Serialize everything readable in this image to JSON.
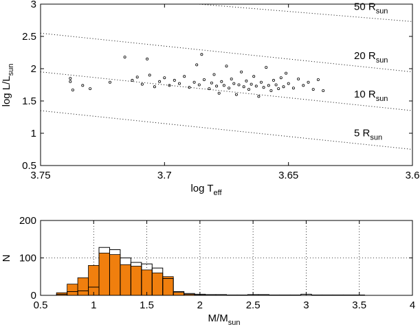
{
  "chart_data": [
    {
      "type": "scatter",
      "xlabel": {
        "base": "log T",
        "sub": "eff"
      },
      "ylabel": {
        "base": "log L/L",
        "sub": "sun"
      },
      "xlim": [
        3.75,
        3.6
      ],
      "ylim": [
        0.5,
        3
      ],
      "x_reversed": true,
      "xticks": [
        "3.75",
        "3.7",
        "3.65",
        "3.6"
      ],
      "xtick_values": [
        3.75,
        3.7,
        3.65,
        3.6
      ],
      "yticks": [
        "0.5",
        "1",
        "1.5",
        "2",
        "2.5",
        "3"
      ],
      "ytick_values": [
        0.5,
        1,
        1.5,
        2,
        2.5,
        3
      ],
      "grid": false,
      "marker": "open-circle",
      "radius_lines": [
        {
          "label": "50 R",
          "sub": "sun",
          "left_y": 3.2,
          "right_y": 2.73
        },
        {
          "label": "20 R",
          "sub": "sun",
          "left_y": 2.55,
          "right_y": 1.95
        },
        {
          "label": "10 R",
          "sub": "sun",
          "left_y": 1.95,
          "right_y": 1.35
        },
        {
          "label": "5 R",
          "sub": "sun",
          "left_y": 1.35,
          "right_y": 0.75
        }
      ],
      "points": [
        [
          3.738,
          1.85
        ],
        [
          3.738,
          1.8
        ],
        [
          3.737,
          1.67
        ],
        [
          3.733,
          1.74
        ],
        [
          3.73,
          1.69
        ],
        [
          3.722,
          1.79
        ],
        [
          3.716,
          2.18
        ],
        [
          3.713,
          1.82
        ],
        [
          3.711,
          1.87
        ],
        [
          3.709,
          1.76
        ],
        [
          3.707,
          2.15
        ],
        [
          3.706,
          1.9
        ],
        [
          3.704,
          1.72
        ],
        [
          3.702,
          1.8
        ],
        [
          3.7,
          1.86
        ],
        [
          3.698,
          1.74
        ],
        [
          3.696,
          1.82
        ],
        [
          3.694,
          1.77
        ],
        [
          3.692,
          1.88
        ],
        [
          3.69,
          1.71
        ],
        [
          3.688,
          1.79
        ],
        [
          3.687,
          2.06
        ],
        [
          3.686,
          1.75
        ],
        [
          3.685,
          2.22
        ],
        [
          3.684,
          1.83
        ],
        [
          3.682,
          1.69
        ],
        [
          3.681,
          1.78
        ],
        [
          3.68,
          1.91
        ],
        [
          3.679,
          1.73
        ],
        [
          3.678,
          1.62
        ],
        [
          3.677,
          1.8
        ],
        [
          3.676,
          1.74
        ],
        [
          3.675,
          2.04
        ],
        [
          3.674,
          1.7
        ],
        [
          3.673,
          1.84
        ],
        [
          3.672,
          1.77
        ],
        [
          3.671,
          1.6
        ],
        [
          3.67,
          1.75
        ],
        [
          3.669,
          1.95
        ],
        [
          3.668,
          1.72
        ],
        [
          3.667,
          1.81
        ],
        [
          3.666,
          1.68
        ],
        [
          3.665,
          1.76
        ],
        [
          3.664,
          1.88
        ],
        [
          3.663,
          1.73
        ],
        [
          3.662,
          1.57
        ],
        [
          3.661,
          1.79
        ],
        [
          3.66,
          1.71
        ],
        [
          3.659,
          2.02
        ],
        [
          3.658,
          1.74
        ],
        [
          3.657,
          1.66
        ],
        [
          3.656,
          1.82
        ],
        [
          3.655,
          1.75
        ],
        [
          3.654,
          1.69
        ],
        [
          3.653,
          1.86
        ],
        [
          3.652,
          1.72
        ],
        [
          3.651,
          1.93
        ],
        [
          3.65,
          1.77
        ],
        [
          3.648,
          1.7
        ],
        [
          3.646,
          1.84
        ],
        [
          3.644,
          1.74
        ],
        [
          3.642,
          1.79
        ],
        [
          3.64,
          1.68
        ],
        [
          3.638,
          1.83
        ],
        [
          3.636,
          1.66
        ]
      ]
    },
    {
      "type": "bar",
      "subtype": "histogram",
      "xlabel": {
        "base": "M/M",
        "sub": "sun"
      },
      "ylabel": "N",
      "xlim": [
        0.5,
        4
      ],
      "ylim": [
        0,
        200
      ],
      "xticks": [
        "0.5",
        "1",
        "1.5",
        "2",
        "2.5",
        "3",
        "3.5",
        "4"
      ],
      "xtick_values": [
        0.5,
        1,
        1.5,
        2,
        2.5,
        3,
        3.5,
        4
      ],
      "yticks": [
        "0",
        "100",
        "200"
      ],
      "ytick_values": [
        0,
        100,
        200
      ],
      "grid": true,
      "bin_width": 0.1,
      "bin_starts": [
        0.65,
        0.75,
        0.85,
        0.95,
        1.05,
        1.15,
        1.25,
        1.35,
        1.45,
        1.55,
        1.65,
        1.75,
        1.85,
        1.95,
        2.05,
        2.15,
        2.25,
        2.35,
        2.45,
        2.55,
        2.65,
        2.75,
        2.85,
        2.95,
        3.05,
        3.15,
        3.25,
        3.35,
        3.45,
        3.55
      ],
      "series": [
        {
          "values": [
            3,
            10,
            12,
            22,
            128,
            122,
            100,
            88,
            84,
            73,
            45,
            10,
            5,
            3,
            2,
            2,
            1,
            1,
            2,
            2,
            1,
            1,
            1,
            3,
            1,
            1,
            1,
            1,
            1,
            0
          ],
          "style": "outline",
          "color": "#000000"
        },
        {
          "values": [
            7,
            30,
            47,
            80,
            113,
            109,
            82,
            78,
            68,
            60,
            50,
            8,
            3,
            1,
            0,
            0,
            0,
            0,
            0,
            0,
            0,
            0,
            0,
            0,
            0,
            0,
            0,
            0,
            0,
            0
          ],
          "style": "filled",
          "color": "#f07f0e"
        }
      ]
    }
  ]
}
